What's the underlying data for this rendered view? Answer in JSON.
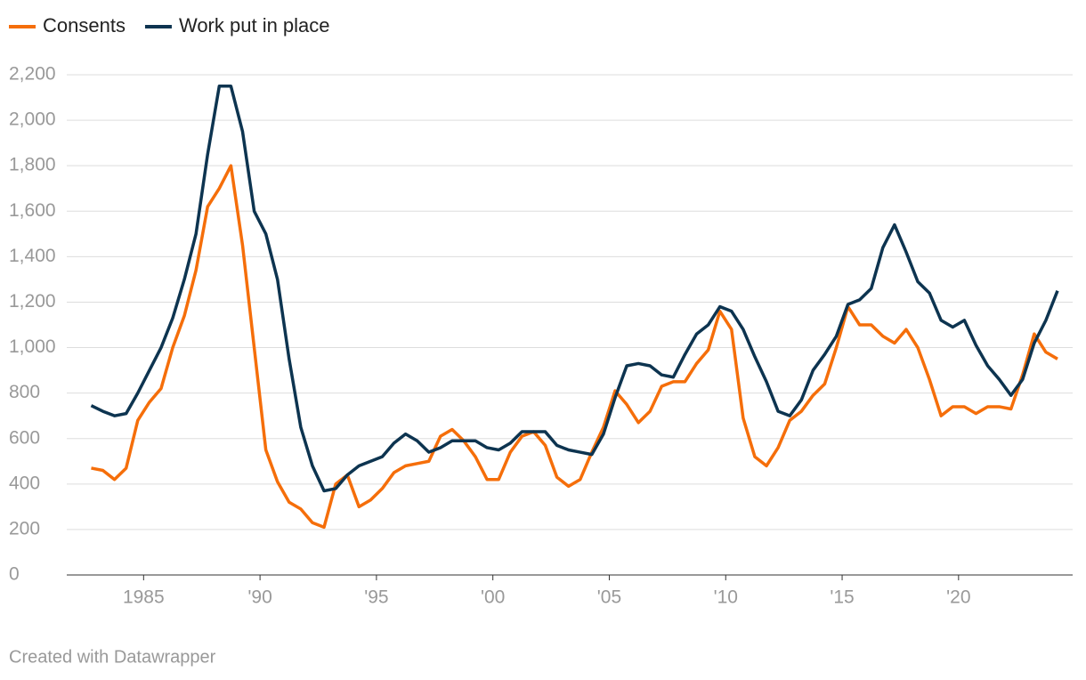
{
  "chart_data": {
    "type": "line",
    "legend": "top-left",
    "grid": true,
    "credit": "Created with Datawrapper",
    "x": [
      1982.75,
      1983.25,
      1983.75,
      1984.25,
      1984.75,
      1985.25,
      1985.75,
      1986.25,
      1986.75,
      1987.25,
      1987.75,
      1988.25,
      1988.75,
      1989.25,
      1989.75,
      1990.25,
      1990.75,
      1991.25,
      1991.75,
      1992.25,
      1992.75,
      1993.25,
      1993.75,
      1994.25,
      1994.75,
      1995.25,
      1995.75,
      1996.25,
      1996.75,
      1997.25,
      1997.75,
      1998.25,
      1998.75,
      1999.25,
      1999.75,
      2000.25,
      2000.75,
      2001.25,
      2001.75,
      2002.25,
      2002.75,
      2003.25,
      2003.75,
      2004.25,
      2004.75,
      2005.25,
      2005.75,
      2006.25,
      2006.75,
      2007.25,
      2007.75,
      2008.25,
      2008.75,
      2009.25,
      2009.75,
      2010.25,
      2010.75,
      2011.25,
      2011.75,
      2012.25,
      2012.75,
      2013.25,
      2013.75,
      2014.25,
      2014.75,
      2015.25,
      2015.75,
      2016.25,
      2016.75,
      2017.25,
      2017.75,
      2018.25,
      2018.75,
      2019.25,
      2019.75,
      2020.25,
      2020.75,
      2021.25,
      2021.75,
      2022.25,
      2022.75,
      2023.25,
      2023.75,
      2024.25
    ],
    "series": [
      {
        "name": "Consents",
        "color": "#f56e0a",
        "values": [
          470,
          460,
          420,
          470,
          680,
          760,
          820,
          1000,
          1140,
          1340,
          1620,
          1700,
          1800,
          1450,
          1000,
          550,
          410,
          320,
          290,
          230,
          210,
          400,
          440,
          300,
          330,
          380,
          450,
          480,
          490,
          500,
          610,
          640,
          590,
          520,
          420,
          420,
          540,
          610,
          630,
          570,
          430,
          390,
          420,
          540,
          650,
          810,
          750,
          670,
          720,
          830,
          850,
          850,
          930,
          990,
          1160,
          1080,
          690,
          520,
          480,
          560,
          680,
          720,
          790,
          840,
          1000,
          1180,
          1100,
          1100,
          1050,
          1020,
          1080,
          1000,
          860,
          700,
          740,
          740,
          710,
          740,
          740,
          730,
          880,
          1060,
          980,
          950
        ]
      },
      {
        "name": "Work put in place",
        "color": "#0d3450",
        "values": [
          745,
          720,
          700,
          710,
          800,
          900,
          1000,
          1130,
          1300,
          1500,
          1850,
          2150,
          2150,
          1950,
          1600,
          1500,
          1300,
          950,
          650,
          480,
          370,
          380,
          440,
          480,
          500,
          520,
          580,
          620,
          590,
          540,
          560,
          590,
          590,
          590,
          560,
          550,
          580,
          630,
          630,
          630,
          570,
          550,
          540,
          530,
          620,
          780,
          920,
          930,
          920,
          880,
          870,
          970,
          1060,
          1100,
          1180,
          1160,
          1080,
          960,
          850,
          720,
          700,
          770,
          900,
          970,
          1050,
          1190,
          1210,
          1260,
          1440,
          1540,
          1420,
          1290,
          1240,
          1120,
          1090,
          1120,
          1010,
          920,
          860,
          790,
          860,
          1020,
          1120,
          1250
        ]
      }
    ],
    "xlim": [
      1981.7,
      2024.9
    ],
    "xticks": [
      1985,
      {
        "value": 1990,
        "label": "'90"
      },
      {
        "value": 1995,
        "label": "'95"
      },
      {
        "value": 2000,
        "label": "'00"
      },
      {
        "value": 2005,
        "label": "'05"
      },
      {
        "value": 2010,
        "label": "'10"
      },
      {
        "value": 2015,
        "label": "'15"
      },
      {
        "value": 2020,
        "label": "'20"
      }
    ],
    "ylim": [
      0,
      2200
    ],
    "yticks": [
      0,
      200,
      400,
      600,
      800,
      {
        "value": 1000,
        "label": "1,000"
      },
      {
        "value": 1200,
        "label": "1,200"
      },
      {
        "value": 1400,
        "label": "1,400"
      },
      {
        "value": 1600,
        "label": "1,600"
      },
      {
        "value": 1800,
        "label": "1,800"
      },
      {
        "value": 2000,
        "label": "2,000"
      },
      {
        "value": 2200,
        "label": "2,200"
      }
    ]
  }
}
